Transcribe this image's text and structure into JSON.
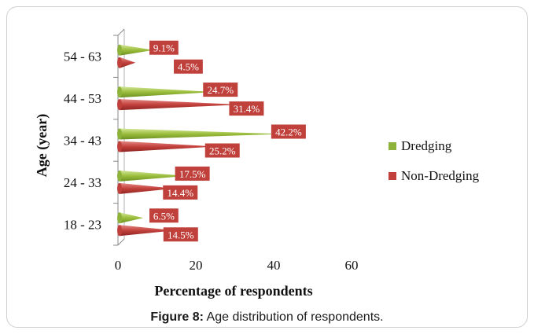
{
  "chart_data": {
    "type": "bar",
    "orientation": "horizontal",
    "style": "cone",
    "categories": [
      "18 - 23",
      "24 - 33",
      "34 - 43",
      "44 - 53",
      "54 - 63"
    ],
    "series": [
      {
        "name": "Dredging",
        "values": [
          6.5,
          17.5,
          42.2,
          24.7,
          9.1
        ],
        "labels": [
          "6.5%",
          "17.5%",
          "42.2%",
          "24.7%",
          "9.1%"
        ],
        "color": "#8db33a"
      },
      {
        "name": "Non-Dredging",
        "values": [
          14.5,
          14.4,
          25.2,
          31.4,
          4.5
        ],
        "labels": [
          "14.5%",
          "14.4%",
          "25.2%",
          "31.4%",
          "4.5%"
        ],
        "color": "#c0403b"
      }
    ],
    "xlabel": "Percentage of respondents",
    "ylabel": "Age (year)",
    "xlim": [
      0,
      60
    ],
    "xticks": [
      "0",
      "20",
      "40",
      "60"
    ],
    "legend_position": "right",
    "label_box_color": "#c0403b"
  },
  "caption": {
    "prefix": "Figure 8:",
    "text": " Age distribution of respondents."
  }
}
